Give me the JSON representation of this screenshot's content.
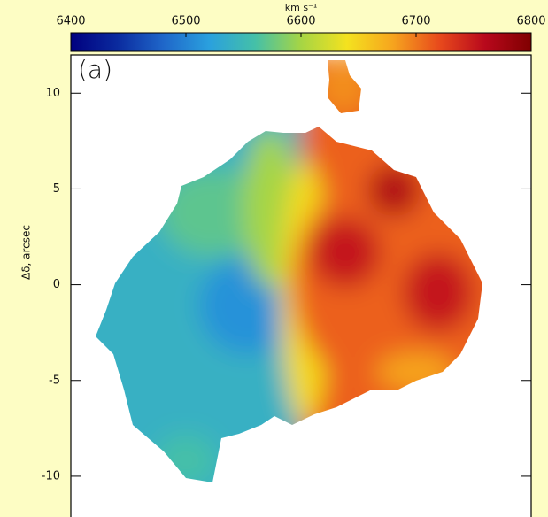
{
  "chart_data": {
    "type": "velocity-map",
    "panel_label": "(a)",
    "ylabel": "Δδ, arcsec",
    "colorbar_label": "km s⁻¹",
    "colorbar_lim": [
      6400,
      6800
    ],
    "colorbar_ticks": [
      6400,
      6500,
      6600,
      6700,
      6800
    ],
    "colormap": [
      "#00007f",
      "#0a2a9e",
      "#1f66c9",
      "#2aa0de",
      "#44c0a8",
      "#a6d544",
      "#f4e21f",
      "#f6a41e",
      "#e84a1c",
      "#b8081c",
      "#7f0000"
    ],
    "ylim": [
      -12.5,
      12
    ],
    "yticks": [
      -10,
      -5,
      0,
      5,
      10
    ],
    "regions": [
      6540,
      6510,
      6570,
      6600,
      6645,
      6710,
      6750,
      6750,
      6765,
      6690,
      6680,
      6560
    ]
  }
}
